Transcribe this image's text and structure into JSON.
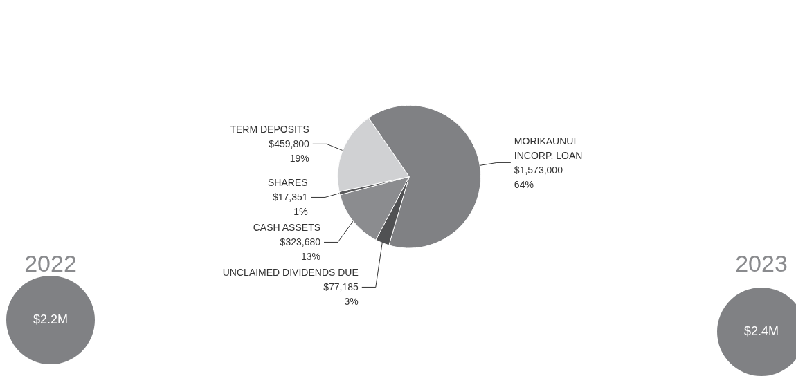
{
  "chart_data": {
    "type": "pie",
    "categories": [
      "MORIKAUNUI\nINCORP. LOAN",
      "UNCLAIMED DIVIDENDS DUE",
      "CASH ASSETS",
      "SHARES",
      "TERM DEPOSITS"
    ],
    "values": [
      1573000,
      77185,
      323680,
      17351,
      459800
    ],
    "colors": [
      "#808184",
      "#505153",
      "#8b8c8f",
      "#58595b",
      "#d0d1d3"
    ],
    "value_labels": [
      "$1,573,000\n64%",
      "$77,185\n3%",
      "$323,680\n13%",
      "$17,351\n1%",
      "$459,800\n19%"
    ],
    "annotations": [
      "2022",
      "$2.2M",
      "2023",
      "$2.4M"
    ]
  }
}
